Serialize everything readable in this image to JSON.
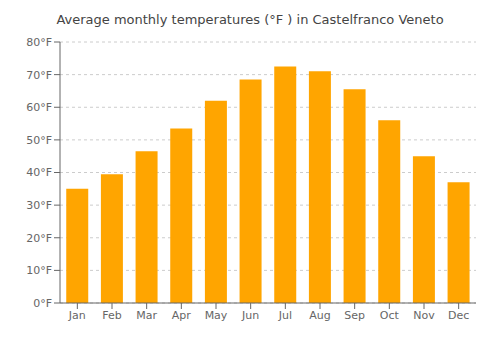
{
  "chart_data": {
    "type": "bar",
    "title": "Average monthly temperatures (°F ) in Castelfranco Veneto",
    "categories": [
      "Jan",
      "Feb",
      "Mar",
      "Apr",
      "May",
      "Jun",
      "Jul",
      "Aug",
      "Sep",
      "Oct",
      "Nov",
      "Dec"
    ],
    "values": [
      35,
      39.5,
      46.5,
      53.5,
      62,
      68.5,
      72.5,
      71,
      65.5,
      56,
      45,
      37
    ],
    "color": "#FFA500",
    "ylim": [
      0,
      80
    ],
    "yticks": [
      {
        "value": 0,
        "label": "0°F"
      },
      {
        "value": 10,
        "label": "10°F"
      },
      {
        "value": 20,
        "label": "20°F"
      },
      {
        "value": 30,
        "label": "30°F"
      },
      {
        "value": 40,
        "label": "40°F"
      },
      {
        "value": 50,
        "label": "50°F"
      },
      {
        "value": 60,
        "label": "60°F"
      },
      {
        "value": 70,
        "label": "70°F"
      },
      {
        "value": 80,
        "label": "80°F"
      }
    ],
    "grid": true
  }
}
